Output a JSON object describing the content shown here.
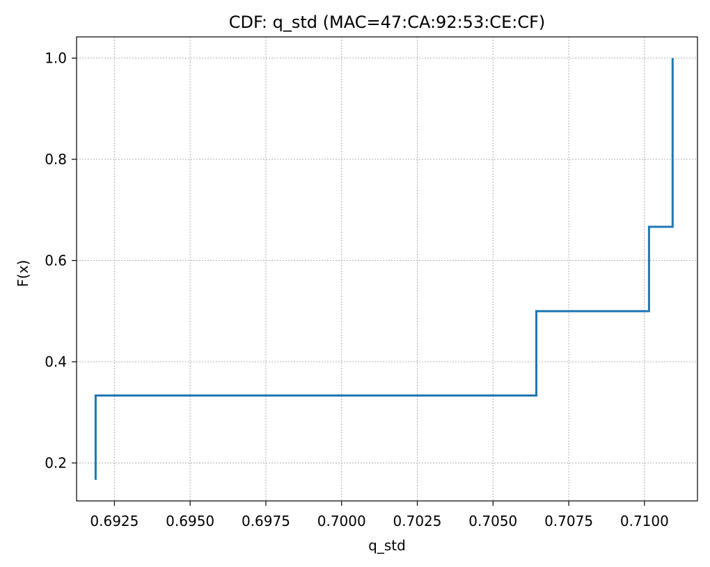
{
  "chart_data": {
    "type": "line",
    "step": "post",
    "title": "CDF: q_std (MAC=47:CA:92:53:CE:CF)",
    "xlabel": "q_std",
    "ylabel": "F(x)",
    "xlim": [
      0.69125,
      0.71175
    ],
    "ylim": [
      0.125,
      1.042
    ],
    "xticks": [
      0.6925,
      0.695,
      0.6975,
      0.7,
      0.7025,
      0.705,
      0.7075,
      0.71
    ],
    "xtick_labels": [
      "0.6925",
      "0.6950",
      "0.6975",
      "0.7000",
      "0.7025",
      "0.7050",
      "0.7075",
      "0.7100"
    ],
    "yticks": [
      0.2,
      0.4,
      0.6,
      0.8,
      1.0
    ],
    "ytick_labels": [
      "0.2",
      "0.4",
      "0.6",
      "0.8",
      "1.0"
    ],
    "grid": true,
    "series": [
      {
        "color": "#1f77b4",
        "x": [
          0.69188,
          0.69188,
          0.70643,
          0.70643,
          0.71015,
          0.71015,
          0.71093,
          0.71093
        ],
        "y": [
          0.1667,
          0.3333,
          0.3333,
          0.5,
          0.5,
          0.6667,
          0.6667,
          1.0
        ]
      }
    ]
  }
}
